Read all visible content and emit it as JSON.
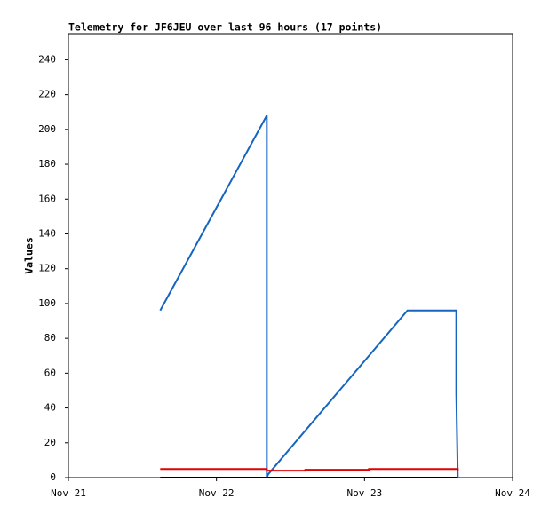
{
  "chart_data": {
    "type": "line",
    "title": "Telemetry for JF6JEU over last 96 hours (17 points)",
    "y_label": "Values",
    "xlim": [
      0,
      3
    ],
    "xticks": [
      {
        "value": 0,
        "label": "Nov 21"
      },
      {
        "value": 1,
        "label": "Nov 22"
      },
      {
        "value": 2,
        "label": "Nov 23"
      },
      {
        "value": 3,
        "label": "Nov 24"
      }
    ],
    "ylim": [
      0,
      255
    ],
    "yticks": [
      0,
      20,
      40,
      60,
      80,
      100,
      120,
      140,
      160,
      180,
      200,
      220,
      240
    ],
    "grid": false,
    "series": [
      {
        "color": "#1565c0",
        "x": [
          0.62,
          1.34,
          1.34,
          1.35,
          2.29,
          2.62,
          2.62,
          2.63
        ],
        "values": [
          96,
          208,
          0,
          2,
          96,
          96,
          48,
          0
        ]
      },
      {
        "color": "#e00000",
        "x": [
          0.62,
          1.34,
          1.34,
          1.6,
          1.6,
          2.03,
          2.03,
          2.63,
          2.63
        ],
        "values": [
          5,
          5,
          4,
          4,
          4.5,
          4.5,
          5,
          5,
          4
        ]
      },
      {
        "color": "#000000",
        "x": [
          0.62,
          2.63
        ],
        "values": [
          0,
          0
        ]
      }
    ]
  }
}
